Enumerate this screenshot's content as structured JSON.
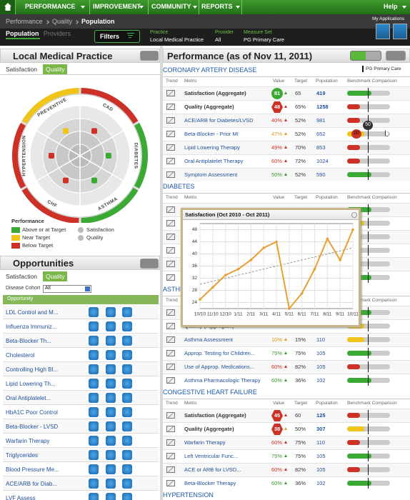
{
  "nav": {
    "items": [
      "PERFORMANCE",
      "IMPROVEMENT",
      "COMMUNITY",
      "REPORTS"
    ],
    "help": "Help"
  },
  "breadcrumb": [
    "Performance",
    "Quality",
    "Population"
  ],
  "tabs": [
    "Population",
    "Providers"
  ],
  "filters": "Filters",
  "context": [
    {
      "label": "Practice",
      "value": "Local Medical Practice"
    },
    {
      "label": "Provider",
      "value": "All"
    },
    {
      "label": "Measure Set",
      "value": "PG Primary Care"
    }
  ],
  "my_applications": "My Applications",
  "practice_panel": {
    "title": "Local Medical Practice",
    "tabs": [
      "Satisfaction",
      "Quality"
    ],
    "segments": [
      {
        "label": "PREVENTIVE",
        "status": "near"
      },
      {
        "label": "CAD",
        "status": "below"
      },
      {
        "label": "DIABETES",
        "status": "above"
      },
      {
        "label": "ASTHMA",
        "status": "above"
      },
      {
        "label": "CHF",
        "status": "below"
      },
      {
        "label": "HYPERTENSION",
        "status": "below"
      }
    ],
    "legend": {
      "title": "Performance",
      "status_items": [
        {
          "label": "Above or at Target",
          "status": "above"
        },
        {
          "label": "Near Target",
          "status": "near"
        },
        {
          "label": "Below Target",
          "status": "below"
        }
      ],
      "kind_items": [
        "Satisfaction",
        "Quality"
      ]
    }
  },
  "opportunities": {
    "title": "Opportunities",
    "tabs": [
      "Satisfaction",
      "Quality"
    ],
    "cohort_label": "Disease Cohort",
    "cohort_value": "All",
    "header": "Opportunity",
    "items": [
      "LDL Control and M...",
      "Influenza Immuniz...",
      "Beta-Blocker Th...",
      "Cholesterol",
      "Controlling High Bl...",
      "Lipid Lowering Th...",
      "Oral Antiplatelet...",
      "HbA1C Poor Control",
      "Beta-Blocker - LVSD",
      "Warfarin Therapy",
      "Triglycerides",
      "Blood Pressure Me...",
      "ACE/ARB for Diab...",
      "LVF Assess"
    ]
  },
  "performance": {
    "title": "Performance (as of Nov 11, 2011)",
    "measure_set": "PG Primary Care",
    "columns": [
      "Trend",
      "Metric",
      "Value",
      "Target",
      "Population",
      "Benchmark Comparison"
    ],
    "sections": [
      {
        "name": "CORONARY ARTERY DISEASE",
        "rows": [
          {
            "metric": "Satisfaction (Aggregate)",
            "value": "81",
            "badge": "circle",
            "target": "65",
            "population": "419",
            "status": "above",
            "aggregate": true
          },
          {
            "metric": "Quality (Aggregate)",
            "value": "48",
            "badge": "hexagon",
            "target": "65%",
            "population": "1258",
            "status": "below",
            "aggregate": true
          },
          {
            "metric": "ACE/ARB for Diabetes/LVSD",
            "value": "40%",
            "target": "52%",
            "population": "981",
            "status": "below"
          },
          {
            "metric": "Beta-Blocker - Prior MI",
            "value": "47%",
            "target": "52%",
            "population": "652",
            "status": "near",
            "marker": "20",
            "tooltip": "50"
          },
          {
            "metric": "Lipid Lowering Therapy",
            "value": "49%",
            "target": "70%",
            "population": "853",
            "status": "below"
          },
          {
            "metric": "Oral Antiplatelet Therapy",
            "value": "60%",
            "target": "72%",
            "population": "1024",
            "status": "below"
          },
          {
            "metric": "Symptom Assessment",
            "value": "50%",
            "target": "52%",
            "population": "590",
            "status": "above"
          }
        ]
      },
      {
        "name": "DIABETES",
        "rows": [
          {
            "status": "above"
          },
          {
            "status": "near"
          },
          {
            "status": "below"
          },
          {
            "status": "below"
          },
          {
            "status": "below"
          },
          {
            "status": "above"
          }
        ]
      },
      {
        "name": "ASTHMA",
        "rows": [
          {
            "status": "above"
          },
          {
            "metric": "Quality (Aggregate)",
            "status": "near",
            "aggregate": true
          },
          {
            "metric": "Asthma Assessment",
            "value": "10%",
            "target": "15%",
            "population": "110",
            "status": "near"
          },
          {
            "metric": "Approp. Testing for Children...",
            "value": "75%",
            "target": "75%",
            "population": "105",
            "status": "above"
          },
          {
            "metric": "Use of Approp. Medications...",
            "value": "60%",
            "target": "82%",
            "population": "105",
            "status": "below"
          },
          {
            "metric": "Asthma Pharmacologic Therapy",
            "value": "60%",
            "target": "36%",
            "population": "102",
            "status": "above"
          }
        ]
      },
      {
        "name": "CONGESTIVE HEART FAILURE",
        "rows": [
          {
            "metric": "Satisfaction (Aggregate)",
            "value": "45",
            "badge": "hexagon",
            "target": "60",
            "population": "125",
            "status": "below",
            "aggregate": true
          },
          {
            "metric": "Quality (Aggregate)",
            "value": "38",
            "badge": "hexagon",
            "target": "50%",
            "population": "307",
            "status": "near",
            "aggregate": true
          },
          {
            "metric": "Warfarin Therapy",
            "value": "60%",
            "target": "75%",
            "population": "110",
            "status": "below"
          },
          {
            "metric": "Left Ventricular Func...",
            "value": "75%",
            "target": "75%",
            "population": "105",
            "status": "above"
          },
          {
            "metric": "ACE or ARB for LVSD...",
            "value": "60%",
            "target": "82%",
            "population": "105",
            "status": "below"
          },
          {
            "metric": "Beta-Blocker Therapy",
            "value": "60%",
            "target": "36%",
            "population": "102",
            "status": "above"
          }
        ]
      },
      {
        "name": "HYPERTENSION",
        "rows": []
      }
    ]
  },
  "popup": {
    "title": "Satisfaction (Oct 2010 - Oct 2011)",
    "categories": [
      "10/10",
      "11/10",
      "12/10",
      "1/11",
      "2/11",
      "3/11",
      "4/11",
      "5/11",
      "6/11",
      "7/11",
      "8/11",
      "9/11",
      "10/11"
    ],
    "values": [
      25,
      29,
      33,
      35,
      38,
      42,
      44,
      22,
      27,
      35,
      45,
      38,
      48
    ],
    "trend": [
      30,
      42
    ],
    "color": "#e8a030",
    "ylim": [
      22,
      50
    ],
    "yticks": [
      24,
      28,
      32,
      36,
      40,
      44,
      48
    ]
  }
}
